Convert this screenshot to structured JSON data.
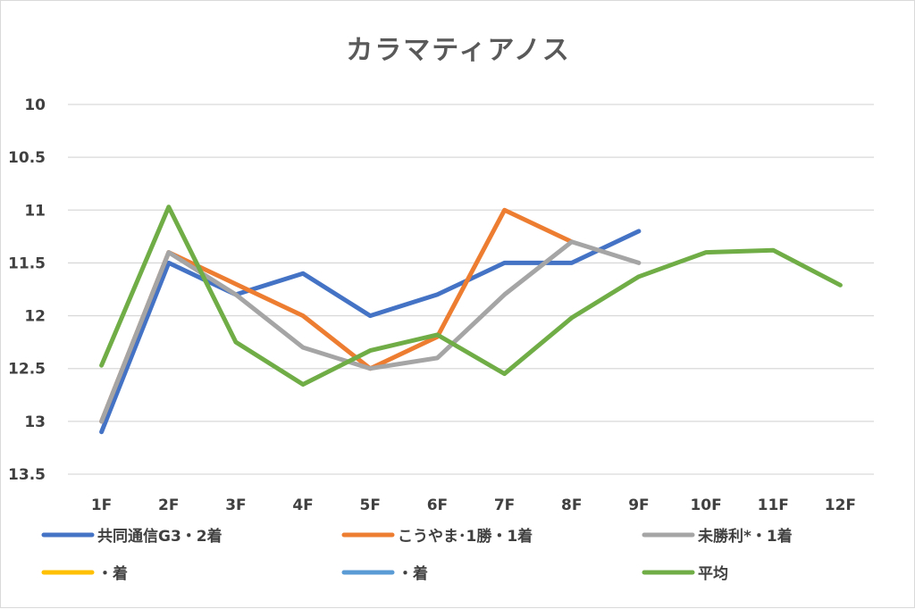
{
  "chart_data": {
    "type": "line",
    "title": "カラマティアノス",
    "categories": [
      "1F",
      "2F",
      "3F",
      "4F",
      "5F",
      "6F",
      "7F",
      "8F",
      "9F",
      "10F",
      "11F",
      "12F"
    ],
    "y_ticks": [
      "10",
      "10.5",
      "11",
      "11.5",
      "12",
      "12.5",
      "13",
      "13.5"
    ],
    "ylim": [
      10,
      13.5
    ],
    "y_reversed": true,
    "grid": true,
    "legend_position": "bottom",
    "series": [
      {
        "name": "共同通信G3・2着",
        "color": "#4472C4",
        "values": [
          13.1,
          11.5,
          11.8,
          11.6,
          12.0,
          11.8,
          11.5,
          11.5,
          11.2,
          null,
          null,
          null
        ]
      },
      {
        "name": "こうやま･1勝・1着",
        "color": "#ED7D31",
        "values": [
          13.0,
          11.4,
          11.7,
          12.0,
          12.5,
          12.2,
          11.0,
          11.3,
          null,
          null,
          null,
          null
        ]
      },
      {
        "name": "未勝利*・1着",
        "color": "#A5A5A5",
        "values": [
          13.0,
          11.4,
          11.8,
          12.3,
          12.5,
          12.4,
          11.8,
          11.3,
          11.5,
          null,
          null,
          null
        ]
      },
      {
        "name": "・着",
        "color": "#FFC000",
        "values": [
          null,
          null,
          null,
          null,
          null,
          null,
          null,
          null,
          null,
          null,
          null,
          null
        ]
      },
      {
        "name": "・着",
        "color": "#5B9BD5",
        "values": [
          null,
          null,
          null,
          null,
          null,
          null,
          null,
          null,
          null,
          null,
          null,
          null
        ]
      },
      {
        "name": "平均",
        "color": "#70AD47",
        "values": [
          12.47,
          10.97,
          12.25,
          12.65,
          12.33,
          12.18,
          12.55,
          12.02,
          11.63,
          11.4,
          11.38,
          11.71
        ]
      }
    ]
  }
}
